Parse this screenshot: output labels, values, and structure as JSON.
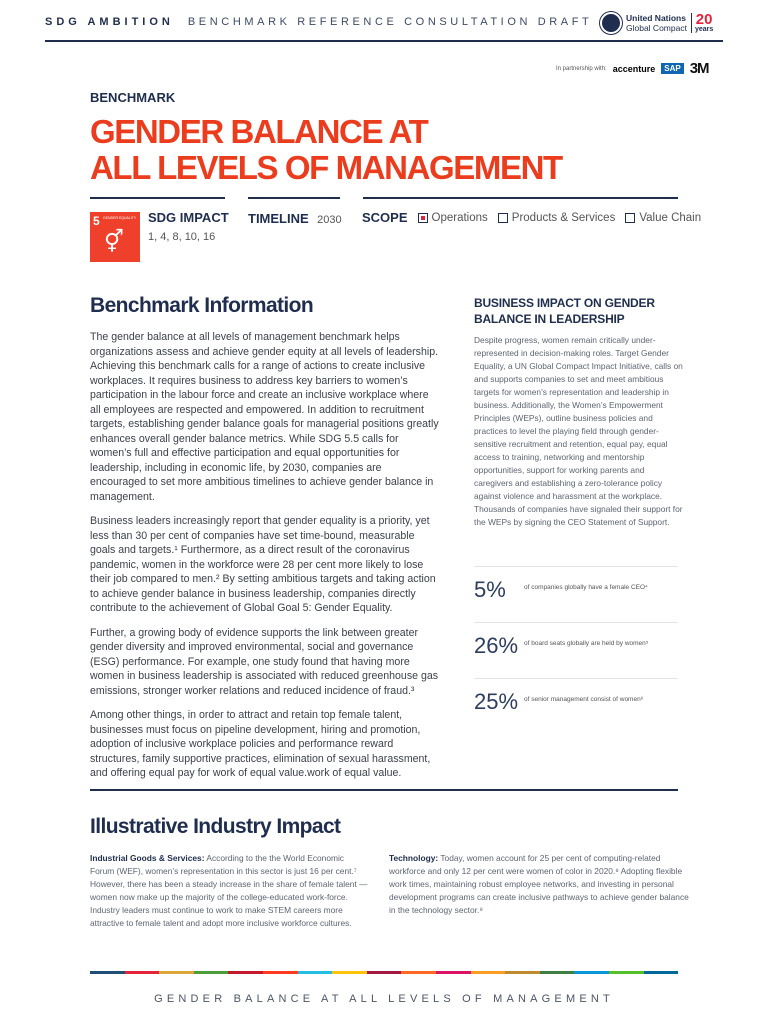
{
  "header": {
    "brand": "SDG AMBITION",
    "subtitle": "BENCHMARK REFERENCE CONSULTATION DRAFT",
    "logo_line1": "United Nations",
    "logo_line2": "Global Compact",
    "years_num": "20",
    "years_label": "years",
    "partnership": "In partnership with:",
    "partners": [
      "accenture",
      "SAP",
      "3M"
    ]
  },
  "kicker": "BENCHMARK",
  "title_lines": [
    "GENDER BALANCE AT",
    "ALL LEVELS OF MANAGEMENT"
  ],
  "sdg_icon": {
    "number": "5",
    "label": "GENDER EQUALITY",
    "icon": "gender-equality-icon",
    "color": "#ef402b"
  },
  "meta": {
    "sdg_impact_label": "SDG IMPACT",
    "sdg_impact_value": "1, 4, 8, 10, 16",
    "timeline_label": "TIMELINE",
    "timeline_value": "2030",
    "scope_label": "SCOPE",
    "scope_options": [
      {
        "label": "Operations",
        "checked": true
      },
      {
        "label": "Products & Services",
        "checked": false
      },
      {
        "label": "Value Chain",
        "checked": false
      }
    ]
  },
  "benchmark": {
    "heading": "Benchmark Information",
    "paragraphs": [
      "The gender balance at all levels of management benchmark helps organizations assess and achieve gender equity at all levels of leadership. Achieving this benchmark calls for a range of actions to create inclusive workplaces. It requires business to address key barriers to women’s participation in the labour force and create an inclusive workplace where all employees are respected and empowered. In addition to recruitment targets, establishing gender balance goals for managerial positions greatly enhances overall gender balance metrics. While SDG 5.5 calls for women’s full and effective participation and equal opportunities for leadership, including in economic life, by 2030, companies are encouraged to set more ambitious timelines to achieve gender balance in management.",
      "Business leaders increasingly report that gender equality is a priority, yet less than 30 per cent of companies have set time-bound, measurable goals and targets.¹ Furthermore, as a direct result of the coronavirus pandemic, women in the workforce were 28 per cent more likely to lose their job compared to men.² By setting ambitious targets and taking action to achieve gender balance in business leadership, companies directly contribute to the achievement of Global Goal 5: Gender Equality.",
      "Further, a growing body of evidence supports the link between greater gender diversity and improved environmental, social and governance (ESG) performance. For example, one study found that having more women in business leadership is associated with reduced greenhouse gas emissions, stronger worker relations and reduced incidence of fraud.³",
      "Among other things, in order to attract and retain top female talent, businesses must focus on pipeline development, hiring and promotion, adoption of inclusive workplace policies and performance reward structures, family supportive practices, elimination of sexual harassment, and offering equal pay for work of equal value.work of equal value."
    ]
  },
  "business_impact": {
    "heading": "BUSINESS IMPACT ON GENDER BALANCE IN LEADERSHIP",
    "text": "Despite progress, women remain critically under-represented in decision-making roles. Target Gender Equality, a UN Global Compact Impact Initiative, calls on and supports companies to set and meet ambitious targets for women’s representation and leadership in business. Additionally, the Women’s Empowerment Principles (WEPs), outline business policies and practices to level the playing field through gender-sensitive recruitment and retention, equal pay, equal access to training, networking and mentorship opportunities, support for working parents and caregivers and establishing a zero-tolerance policy against violence and harassment at the workplace. Thousands of companies have signaled their support for the WEPs by signing the CEO Statement of Support."
  },
  "stats": [
    {
      "value": "5%",
      "desc": "of companies globally have a female CEO⁴"
    },
    {
      "value": "26%",
      "desc": "of board seats globally are held by women⁵"
    },
    {
      "value": "25%",
      "desc": "of senior management consist of women⁶"
    }
  ],
  "industry": {
    "heading": "Illustrative Industry Impact",
    "items": [
      {
        "label": "Industrial Goods & Services:",
        "text": " According to the the World Economic Forum (WEF), women’s representation in this sector is just 16 per cent.⁷ However, there has been a steady increase in the share of female talent — women now make up the majority of the college-educated work-force. Industry leaders must continue to work to make STEM careers more attractive to female talent and adopt more inclusive workforce cultures."
      },
      {
        "label": "Technology:",
        "text": " Today, women account for 25 per cent of computing-related workforce and only 12 per cent were women of color in 2020.⁸ Adopting flexible work times, maintaining robust employee networks, and investing in personal development programs can create inclusive pathways to achieve gender balance in the technology sector.⁹"
      }
    ]
  },
  "footer": {
    "title": "GENDER BALANCE AT ALL LEVELS OF MANAGEMENT",
    "colors": [
      "#1f4e79",
      "#e5243b",
      "#dda63a",
      "#4c9f38",
      "#c5192d",
      "#ff3a21",
      "#26bde2",
      "#fcc30b",
      "#a21942",
      "#fd6925",
      "#dd1367",
      "#fd9d24",
      "#bf8b2e",
      "#3f7e44",
      "#0a97d9",
      "#56c02b",
      "#00689d"
    ]
  },
  "colors": {
    "navy": "#1f2d4e",
    "accent": "#eb3c1e"
  }
}
